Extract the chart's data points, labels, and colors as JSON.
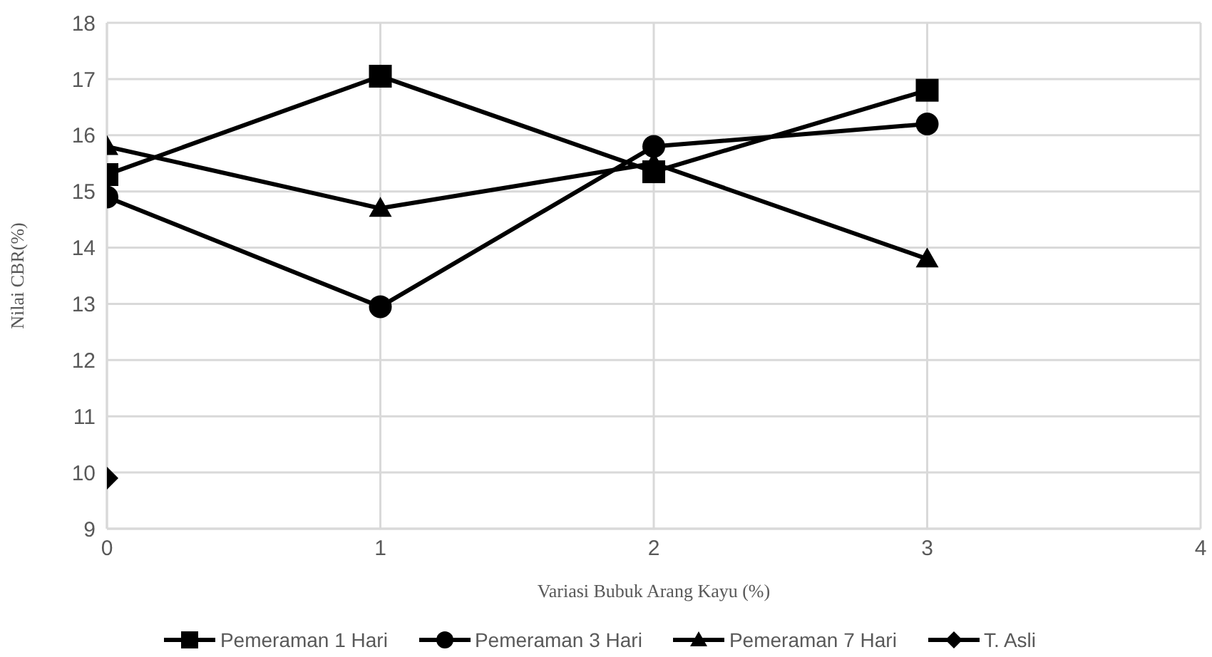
{
  "chart_data": {
    "type": "line",
    "xlabel": "Variasi Bubuk Arang Kayu (%)",
    "ylabel": "Nilai CBR(%)",
    "x": [
      0,
      1,
      2,
      3
    ],
    "xlim": [
      0,
      4
    ],
    "xticks": [
      0,
      1,
      2,
      3,
      4
    ],
    "ylim": [
      9,
      18
    ],
    "yticks": [
      9,
      10,
      11,
      12,
      13,
      14,
      15,
      16,
      17,
      18
    ],
    "grid": true,
    "legend": "bottom",
    "line_style": "solid",
    "series": [
      {
        "name": "Pemeraman 1 Hari",
        "color": "#000000",
        "marker": "square",
        "values": [
          15.3,
          17.05,
          15.35,
          16.8
        ]
      },
      {
        "name": "Pemeraman 3 Hari",
        "color": "#000000",
        "marker": "circle",
        "values": [
          14.9,
          12.95,
          15.8,
          16.2
        ]
      },
      {
        "name": "Pemeraman 7 Hari",
        "color": "#000000",
        "marker": "triangle",
        "values": [
          15.8,
          14.7,
          15.5,
          13.8
        ]
      },
      {
        "name": "T. Asli",
        "color": "#000000",
        "marker": "diamond",
        "values": [
          9.9,
          null,
          null,
          null
        ]
      }
    ]
  }
}
